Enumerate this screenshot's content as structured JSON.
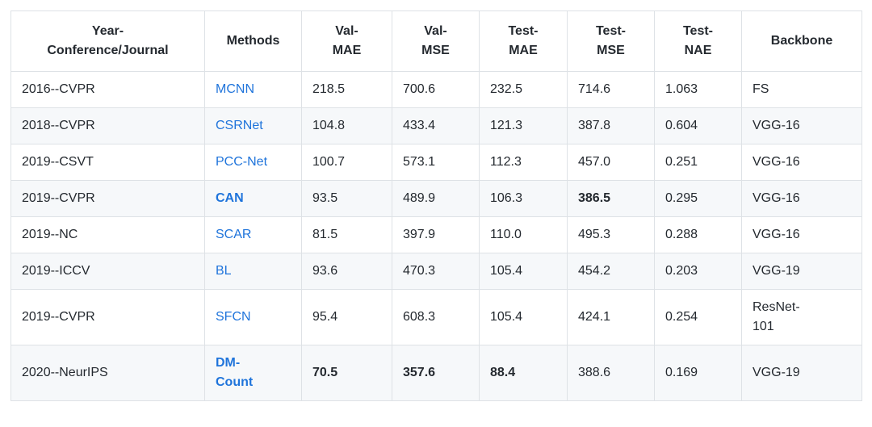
{
  "page": {
    "background": "#ffffff",
    "text_color": "#24292f"
  },
  "table": {
    "link_color": "#1f74db",
    "stripe_color": "#f6f8fa",
    "border_color": "#dee2e6"
  },
  "chart_data": {
    "type": "table",
    "title": "",
    "columns": [
      {
        "name": "year-conference-journal",
        "label": "Year-\nConference/Journal"
      },
      {
        "name": "methods",
        "label": "Methods"
      },
      {
        "name": "val-mae",
        "label": "Val-\nMAE"
      },
      {
        "name": "val-mse",
        "label": "Val-\nMSE"
      },
      {
        "name": "test-mae",
        "label": "Test-\nMAE"
      },
      {
        "name": "test-mse",
        "label": "Test-\nMSE"
      },
      {
        "name": "test-nae",
        "label": "Test-\nNAE"
      },
      {
        "name": "backbone",
        "label": "Backbone"
      }
    ],
    "rows": [
      {
        "cells": [
          "2016--CVPR",
          "MCNN",
          "218.5",
          "700.6",
          "232.5",
          "714.6",
          "1.063",
          "FS"
        ],
        "bold_cells": [],
        "method_bold": false
      },
      {
        "cells": [
          "2018--CVPR",
          "CSRNet",
          "104.8",
          "433.4",
          "121.3",
          "387.8",
          "0.604",
          "VGG-16"
        ],
        "bold_cells": [],
        "method_bold": false
      },
      {
        "cells": [
          "2019--CSVT",
          "PCC-Net",
          "100.7",
          "573.1",
          "112.3",
          "457.0",
          "0.251",
          "VGG-16"
        ],
        "bold_cells": [],
        "method_bold": false
      },
      {
        "cells": [
          "2019--CVPR",
          "CAN",
          "93.5",
          "489.9",
          "106.3",
          "386.5",
          "0.295",
          "VGG-16"
        ],
        "bold_cells": [
          5
        ],
        "method_bold": true
      },
      {
        "cells": [
          "2019--NC",
          "SCAR",
          "81.5",
          "397.9",
          "110.0",
          "495.3",
          "0.288",
          "VGG-16"
        ],
        "bold_cells": [],
        "method_bold": false
      },
      {
        "cells": [
          "2019--ICCV",
          "BL",
          "93.6",
          "470.3",
          "105.4",
          "454.2",
          "0.203",
          "VGG-19"
        ],
        "bold_cells": [],
        "method_bold": false
      },
      {
        "cells": [
          "2019--CVPR",
          "SFCN",
          "95.4",
          "608.3",
          "105.4",
          "424.1",
          "0.254",
          "ResNet-\n101"
        ],
        "bold_cells": [],
        "method_bold": false
      },
      {
        "cells": [
          "2020--NeurIPS",
          "DM-\nCount",
          "70.5",
          "357.6",
          "88.4",
          "388.6",
          "0.169",
          "VGG-19"
        ],
        "bold_cells": [
          2,
          3,
          4
        ],
        "method_bold": true
      }
    ]
  }
}
